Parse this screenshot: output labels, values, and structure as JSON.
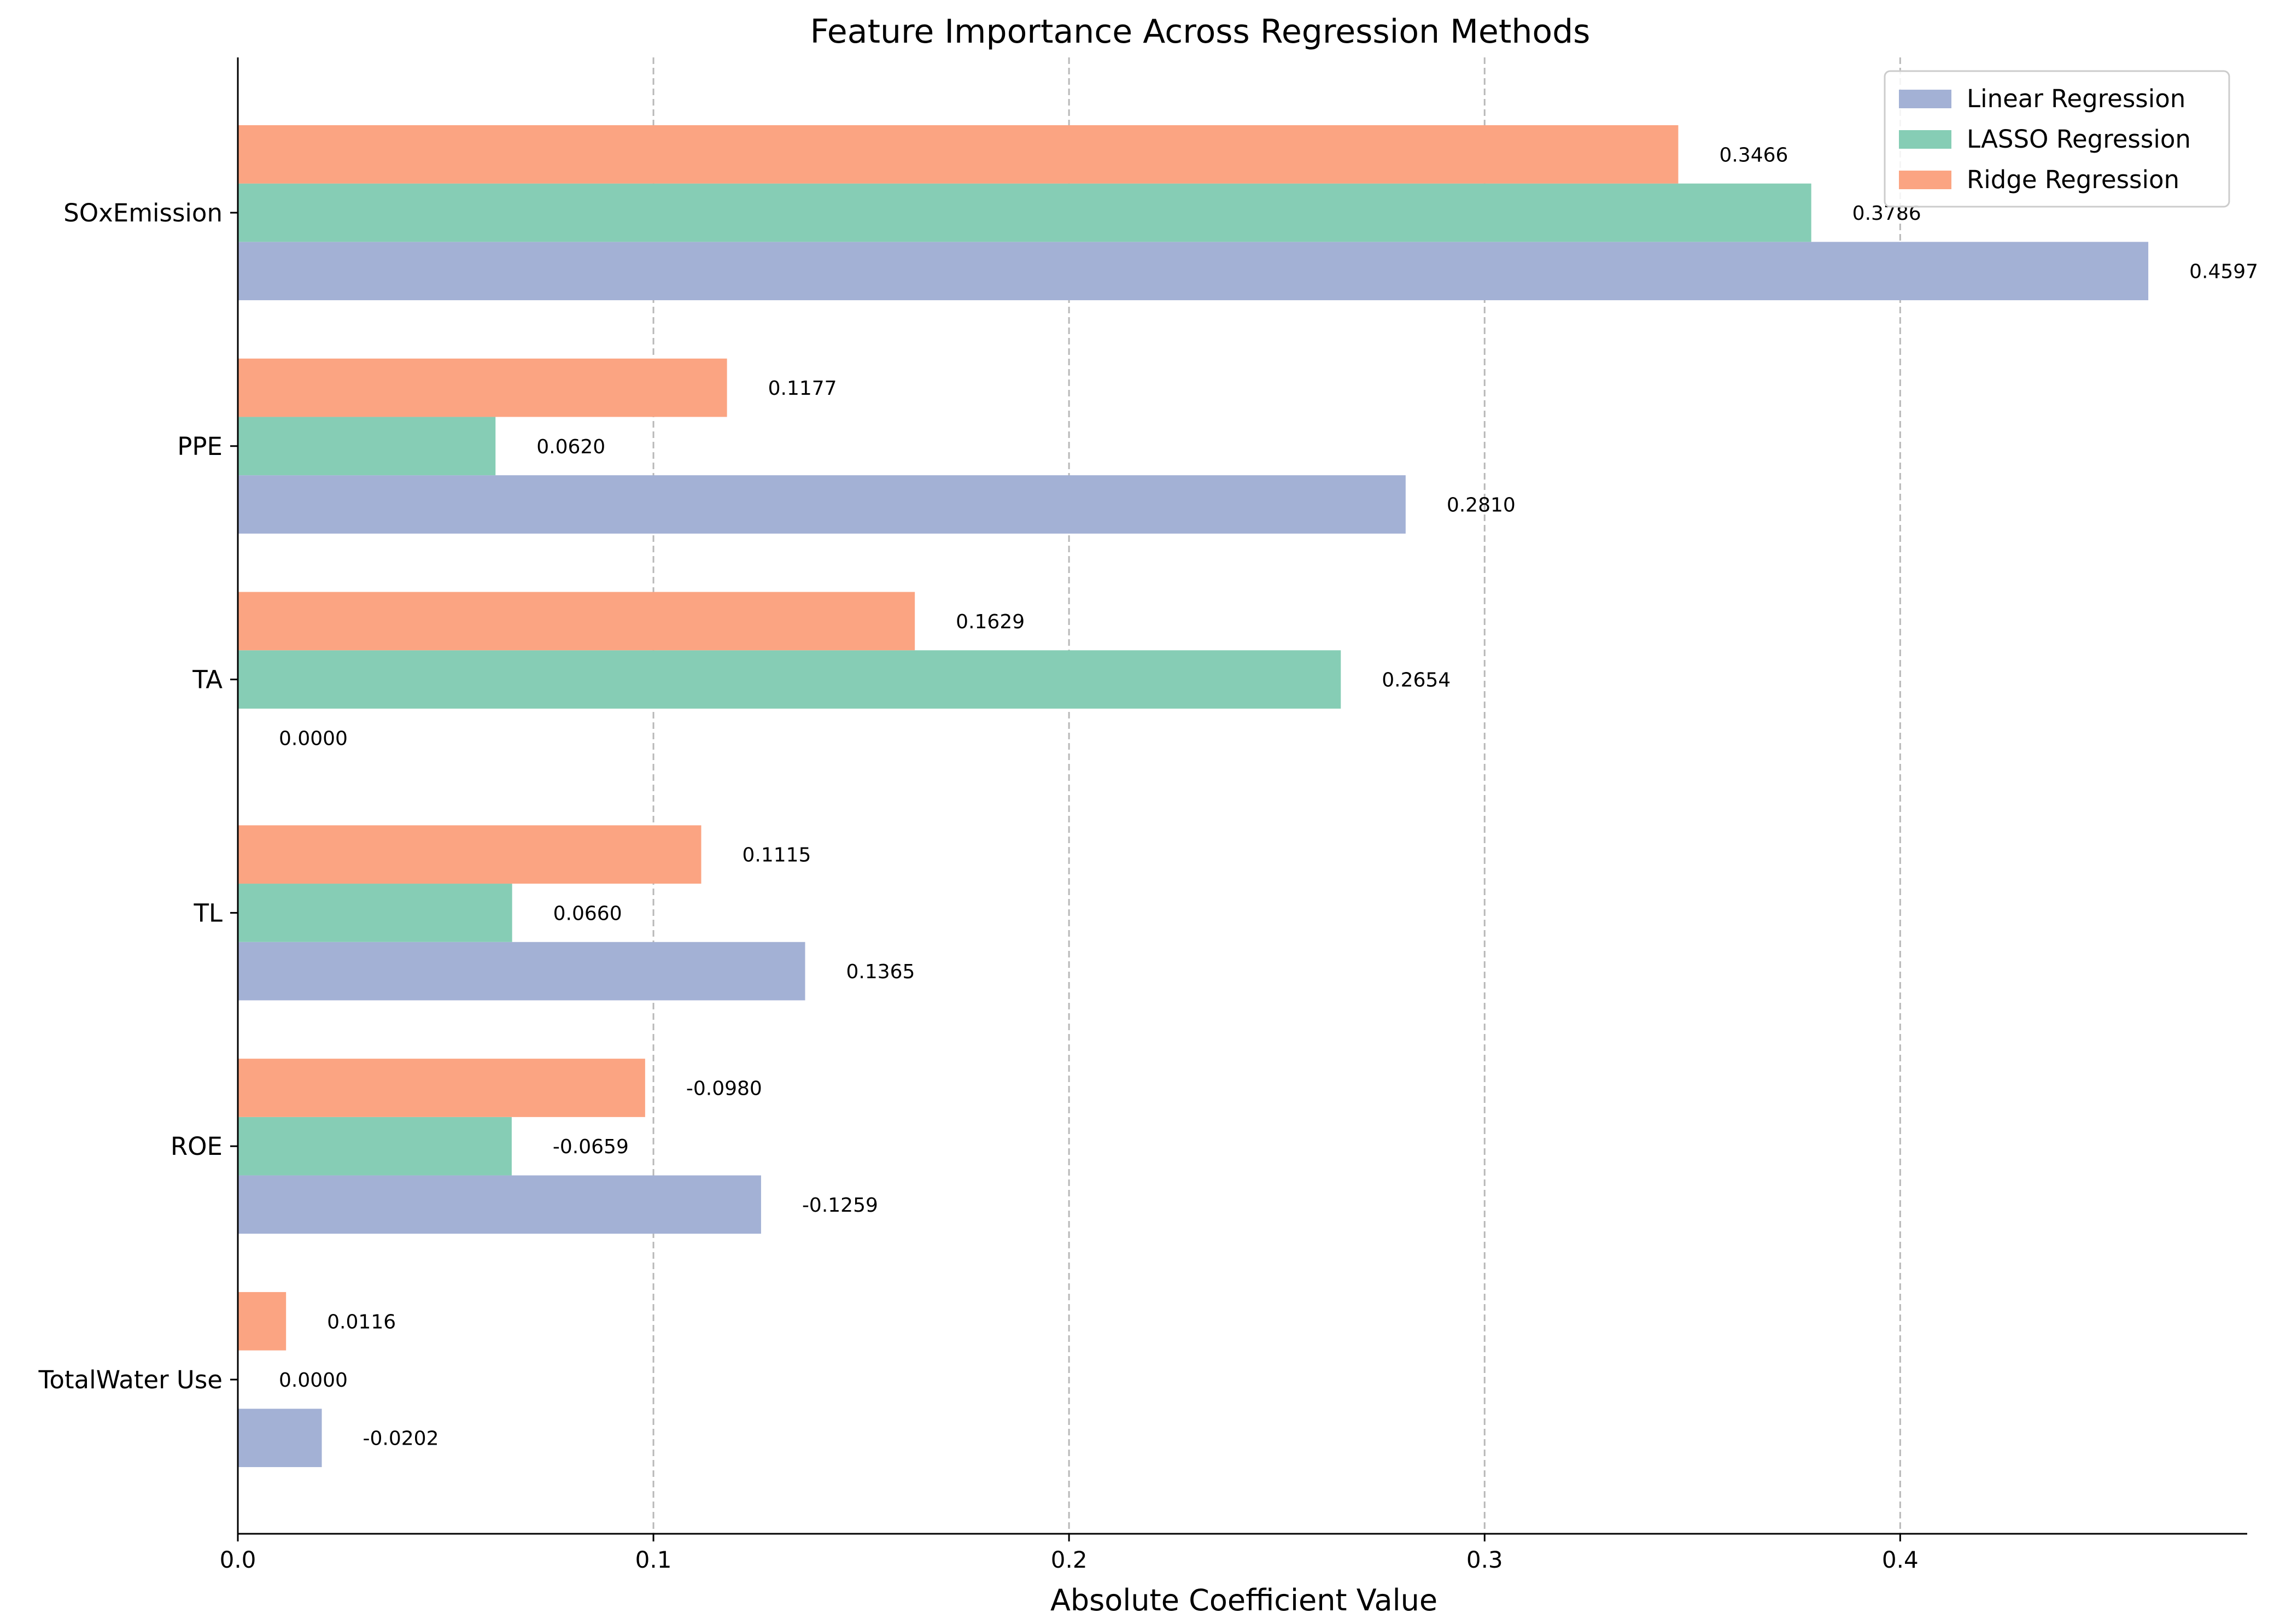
{
  "chart_data": {
    "type": "bar",
    "orientation": "horizontal",
    "title": "Feature Importance Across Regression Methods",
    "xlabel": "Absolute Coefficient Value",
    "ylabel": "",
    "xlim": [
      0,
      0.4835
    ],
    "xticks": [
      0.0,
      0.1,
      0.2,
      0.3,
      0.4
    ],
    "xtick_labels": [
      "0.0",
      "0.1",
      "0.2",
      "0.3",
      "0.4"
    ],
    "grid": "x-dashed",
    "legend_position": "top-right",
    "categories": [
      "SOxEmission",
      "PPE",
      "TA",
      "TL",
      "ROE",
      "TotalWater Use"
    ],
    "series": [
      {
        "name": "Linear Regression",
        "color": "#a3b1d5",
        "values": [
          0.4597,
          0.281,
          0.0,
          0.1365,
          0.1259,
          0.0202
        ],
        "labels": [
          "0.4597",
          "0.2810",
          "0.0000",
          "0.1365",
          "-0.1259",
          "-0.0202"
        ]
      },
      {
        "name": "LASSO Regression",
        "color": "#86cdb5",
        "values": [
          0.3786,
          0.062,
          0.2654,
          0.066,
          0.0659,
          0.0
        ],
        "labels": [
          "0.3786",
          "0.0620",
          "0.2654",
          "0.0660",
          "-0.0659",
          "0.0000"
        ]
      },
      {
        "name": "Ridge Regression",
        "color": "#fba482",
        "values": [
          0.3466,
          0.1177,
          0.1629,
          0.1115,
          0.098,
          0.0116
        ],
        "labels": [
          "0.3466",
          "0.1177",
          "0.1629",
          "0.1115",
          "-0.0980",
          "0.0116"
        ]
      }
    ]
  }
}
